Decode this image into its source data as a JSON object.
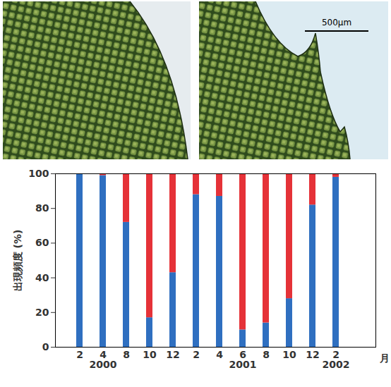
{
  "chart_data": {
    "type": "bar",
    "stacked": true,
    "grid": false,
    "y_label": "出現頻度 (%)",
    "x_label": "月",
    "categories": [
      "2",
      "4\n2000",
      "8",
      "10",
      "12",
      "2",
      "4",
      "6\n2001",
      "8",
      "10",
      "12",
      "2\n2002"
    ],
    "series": [
      {
        "color": "#2f6fc0",
        "values": [
          100,
          99,
          72,
          17,
          43,
          88,
          87,
          10,
          14,
          28,
          82,
          98
        ]
      },
      {
        "color": "#e53238",
        "values": [
          0,
          1,
          28,
          83,
          57,
          12,
          13,
          90,
          86,
          72,
          18,
          2
        ]
      }
    ],
    "ylim": [
      0,
      100
    ],
    "yticks": [
      0,
      20,
      40,
      60,
      80,
      100
    ]
  },
  "micrographs": {
    "scale_bar": "500μm"
  }
}
